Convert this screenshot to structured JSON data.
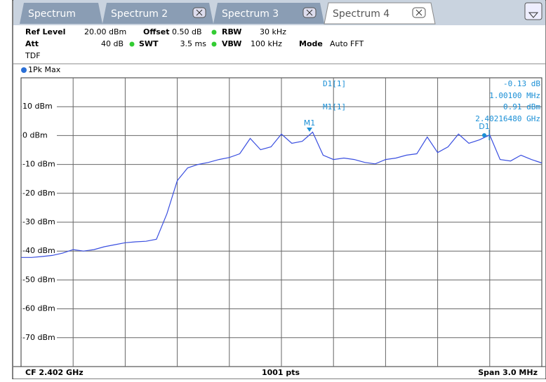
{
  "tabs": [
    "Spectrum",
    "Spectrum 2",
    "Spectrum 3",
    "Spectrum 4"
  ],
  "settings": {
    "ref_level_label": "Ref Level",
    "ref_level": "20.00 dBm",
    "offset_label": "Offset",
    "offset": "0.50 dB",
    "rbw_label": "RBW",
    "rbw": "30 kHz",
    "att_label": "Att",
    "att": "40 dB",
    "swt_label": "SWT",
    "swt": "3.5 ms",
    "vbw_label": "VBW",
    "vbw": "100 kHz",
    "mode_label": "Mode",
    "mode": "Auto FFT",
    "tdf": "TDF"
  },
  "chart_data": {
    "type": "line",
    "trace_label": "1Pk Max",
    "color": "#3a4fe0",
    "ylim": [
      -80,
      20
    ],
    "yticks": [
      {
        "value": 10,
        "label": "10 dBm"
      },
      {
        "value": 0,
        "label": "0 dBm"
      },
      {
        "value": -10,
        "label": "-10 dBm"
      },
      {
        "value": -20,
        "label": "-20 dBm"
      },
      {
        "value": -30,
        "label": "-30 dBm"
      },
      {
        "value": -40,
        "label": "-40 dBm"
      },
      {
        "value": -50,
        "label": "-50 dBm"
      },
      {
        "value": -60,
        "label": "-60 dBm"
      },
      {
        "value": -70,
        "label": "-70 dBm"
      }
    ],
    "grid": true,
    "values": [
      -42.2,
      -42.2,
      -41.9,
      -41.5,
      -40.7,
      -39.5,
      -40,
      -39.5,
      -38.5,
      -37.8,
      -37.1,
      -36.8,
      -36.6,
      -35.9,
      -27.1,
      -15.6,
      -11.2,
      -10,
      -9.3,
      -8.3,
      -7.6,
      -6.3,
      -1,
      -4.9,
      -3.9,
      0.5,
      -2.7,
      -2,
      1.2,
      -6.8,
      -8.3,
      -7.8,
      -8.3,
      -9.3,
      -9.8,
      -8.3,
      -7.8,
      -6.8,
      -6.3,
      -0.5,
      -5.9,
      -3.9,
      0.5,
      -2.7,
      -1.5,
      0.2,
      -8.3,
      -8.8,
      -6.8,
      -8.3,
      -9.5
    ],
    "markers": [
      "M1",
      "D1"
    ],
    "readouts": [
      {
        "name": "D1[1]",
        "level": "-0.13 dB",
        "freq": "1.00100 MHz"
      },
      {
        "name": "M1[1]",
        "level": "0.91 dBm",
        "freq": "2.40216480 GHz"
      }
    ],
    "center": "CF 2.402 GHz",
    "points": "1001 pts",
    "span": "Span 3.0 MHz"
  }
}
